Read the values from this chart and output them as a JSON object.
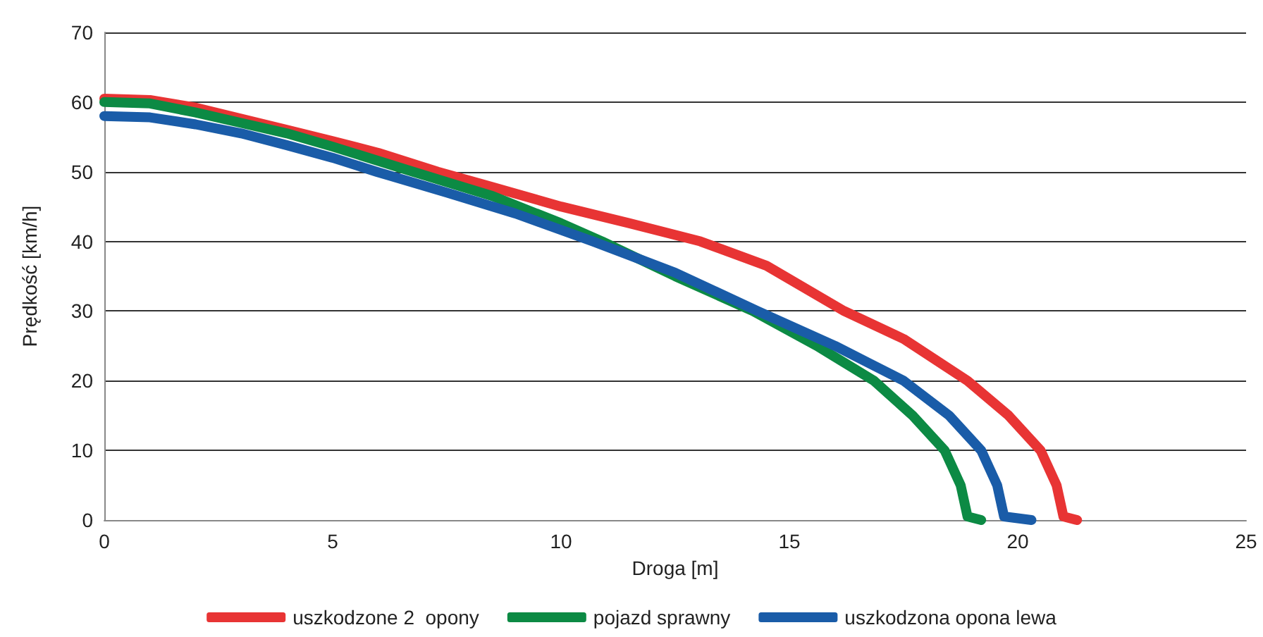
{
  "chart_data": {
    "type": "line",
    "xlabel": "Droga [m]",
    "ylabel": "Prędkość [km/h]",
    "xlim": [
      0,
      25
    ],
    "xticks": [
      0,
      5,
      10,
      15,
      20,
      25
    ],
    "ylim": [
      0,
      70
    ],
    "yticks": [
      0,
      10,
      20,
      30,
      40,
      50,
      60,
      70
    ],
    "grid": "y",
    "legend": "bottom",
    "marker": "none",
    "line_style": "solid",
    "series": [
      {
        "name": "uszkodzone 2  opony",
        "color": "#e83434",
        "x": [
          0,
          1,
          2,
          3,
          4,
          5,
          6,
          7.3,
          8.5,
          10,
          11.5,
          13.05,
          14.5,
          16.2,
          17.5,
          18.9,
          19.8,
          20.5,
          20.85,
          21.0,
          21.3
        ],
        "values": [
          60.5,
          60.3,
          59.2,
          57.6,
          56,
          54.4,
          52.7,
          50,
          47.8,
          45,
          42.6,
          40,
          36.5,
          30,
          26,
          20,
          15,
          10,
          5,
          0.5,
          0
        ]
      },
      {
        "name": "pojazd sprawny",
        "color": "#0c8a44",
        "x": [
          0,
          1,
          2,
          3,
          4,
          5,
          6.76,
          8.5,
          10,
          10.9,
          12.5,
          14.2,
          15.6,
          16.85,
          17.7,
          18.4,
          18.75,
          18.9,
          19.2
        ],
        "values": [
          60,
          59.8,
          58.5,
          57,
          55.5,
          53.6,
          50,
          46.5,
          42.6,
          40,
          35,
          30,
          25,
          20,
          15,
          10,
          5,
          0.5,
          0
        ]
      },
      {
        "name": "uszkodzona opona lewa",
        "color": "#1a5ca8",
        "x": [
          0,
          1,
          2,
          3,
          4,
          5,
          5.96,
          7.5,
          9,
          10.7,
          12.5,
          14.3,
          16,
          17.5,
          18.5,
          19.2,
          19.55,
          19.7,
          20.3
        ],
        "values": [
          58,
          57.8,
          56.8,
          55.5,
          53.8,
          52,
          50,
          47,
          44,
          40,
          35.5,
          30,
          25,
          20,
          15,
          10,
          5,
          0.5,
          0
        ]
      }
    ]
  }
}
